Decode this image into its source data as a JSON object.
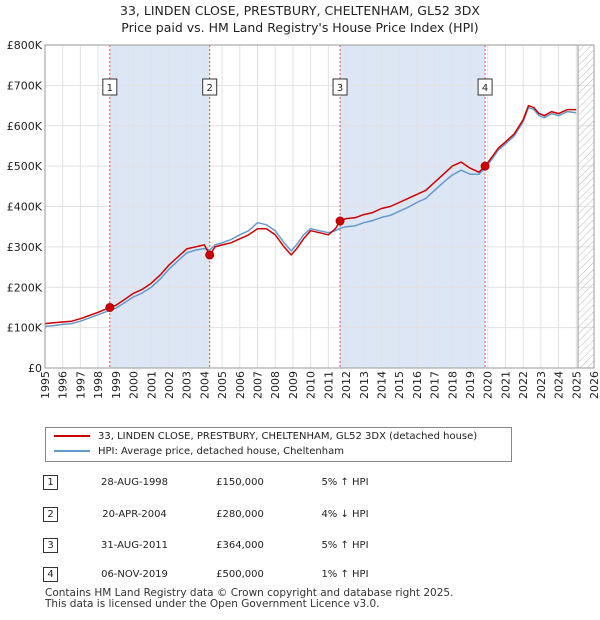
{
  "title_line1": "33, LINDEN CLOSE, PRESTBURY, CHELTENHAM, GL52 3DX",
  "title_line2": "Price paid vs. HM Land Registry's House Price Index (HPI)",
  "colors": {
    "property": "#cc0000",
    "hpi": "#6699cc",
    "sale_band": "#dde6f5",
    "marker_line": "#e05050"
  },
  "legend": {
    "property_label": "33, LINDEN CLOSE, PRESTBURY, CHELTENHAM, GL52 3DX (detached house)",
    "hpi_label": "HPI: Average price, detached house, Cheltenham"
  },
  "sales": [
    {
      "num": "1",
      "date": "28-AUG-1998",
      "price": "£150,000",
      "hpi": "5% ↑ HPI"
    },
    {
      "num": "2",
      "date": "20-APR-2004",
      "price": "£280,000",
      "hpi": "4% ↓ HPI"
    },
    {
      "num": "3",
      "date": "31-AUG-2011",
      "price": "£364,000",
      "hpi": "5% ↑ HPI"
    },
    {
      "num": "4",
      "date": "06-NOV-2019",
      "price": "£500,000",
      "hpi": "1% ↑ HPI"
    }
  ],
  "footer_line1": "Contains HM Land Registry data © Crown copyright and database right 2025.",
  "footer_line2": "This data is licensed under the Open Government Licence v3.0.",
  "chart_data": {
    "type": "line",
    "title": "33, LINDEN CLOSE, PRESTBURY, CHELTENHAM, GL52 3DX — Price paid vs. HM Land Registry's House Price Index (HPI)",
    "xlabel": "",
    "ylabel": "",
    "xlim": [
      1995,
      2026
    ],
    "ylim": [
      0,
      800000
    ],
    "x_ticks": [
      1995,
      1996,
      1997,
      1998,
      1999,
      2000,
      2001,
      2002,
      2003,
      2004,
      2005,
      2006,
      2007,
      2008,
      2009,
      2010,
      2011,
      2012,
      2013,
      2014,
      2015,
      2016,
      2017,
      2018,
      2019,
      2020,
      2021,
      2022,
      2023,
      2024,
      2025,
      2026
    ],
    "y_ticks": [
      {
        "value": 0,
        "label": "£0"
      },
      {
        "value": 100000,
        "label": "£100K"
      },
      {
        "value": 200000,
        "label": "£200K"
      },
      {
        "value": 300000,
        "label": "£300K"
      },
      {
        "value": 400000,
        "label": "£400K"
      },
      {
        "value": 500000,
        "label": "£500K"
      },
      {
        "value": 600000,
        "label": "£600K"
      },
      {
        "value": 700000,
        "label": "£700K"
      },
      {
        "value": 800000,
        "label": "£800K"
      }
    ],
    "grid": true,
    "forecast_start": 2025.1,
    "sale_bands": [
      [
        1998.66,
        2004.3
      ],
      [
        2011.66,
        2019.85
      ]
    ],
    "sale_points": [
      {
        "label": "1",
        "x": 1998.66,
        "y": 150000
      },
      {
        "label": "2",
        "x": 2004.3,
        "y": 280000
      },
      {
        "label": "3",
        "x": 2011.66,
        "y": 364000
      },
      {
        "label": "4",
        "x": 2019.85,
        "y": 500000
      }
    ],
    "series": [
      {
        "name": "33, LINDEN CLOSE, PRESTBURY, CHELTENHAM, GL52 3DX (detached house)",
        "x": [
          1995.0,
          1995.5,
          1996.0,
          1996.5,
          1997.0,
          1997.5,
          1998.0,
          1998.66,
          1999.0,
          1999.5,
          2000.0,
          2000.5,
          2001.0,
          2001.5,
          2002.0,
          2002.5,
          2003.0,
          2003.5,
          2004.0,
          2004.3,
          2004.6,
          2005.0,
          2005.5,
          2006.0,
          2006.5,
          2007.0,
          2007.5,
          2008.0,
          2008.5,
          2008.9,
          2009.2,
          2009.6,
          2010.0,
          2010.5,
          2011.0,
          2011.4,
          2011.66,
          2012.0,
          2012.5,
          2013.0,
          2013.5,
          2014.0,
          2014.5,
          2015.0,
          2015.5,
          2016.0,
          2016.5,
          2017.0,
          2017.5,
          2018.0,
          2018.5,
          2019.0,
          2019.5,
          2019.85,
          2020.2,
          2020.6,
          2021.0,
          2021.5,
          2022.0,
          2022.3,
          2022.6,
          2022.9,
          2023.2,
          2023.6,
          2024.0,
          2024.5,
          2025.0
        ],
        "y": [
          110000,
          112000,
          114000,
          116000,
          122000,
          130000,
          138000,
          150000,
          155000,
          170000,
          185000,
          195000,
          210000,
          230000,
          255000,
          275000,
          295000,
          300000,
          305000,
          280000,
          300000,
          305000,
          310000,
          320000,
          330000,
          345000,
          345000,
          330000,
          300000,
          280000,
          295000,
          320000,
          340000,
          335000,
          330000,
          345000,
          364000,
          370000,
          372000,
          380000,
          385000,
          395000,
          400000,
          410000,
          420000,
          430000,
          440000,
          460000,
          480000,
          500000,
          510000,
          495000,
          485000,
          500000,
          520000,
          545000,
          560000,
          580000,
          615000,
          650000,
          645000,
          630000,
          625000,
          635000,
          630000,
          640000,
          640000
        ]
      },
      {
        "name": "HPI: Average price, detached house, Cheltenham",
        "x": [
          1995.0,
          1995.5,
          1996.0,
          1996.5,
          1997.0,
          1997.5,
          1998.0,
          1998.66,
          1999.0,
          1999.5,
          2000.0,
          2000.5,
          2001.0,
          2001.5,
          2002.0,
          2002.5,
          2003.0,
          2003.5,
          2004.0,
          2004.3,
          2004.6,
          2005.0,
          2005.5,
          2006.0,
          2006.5,
          2007.0,
          2007.5,
          2008.0,
          2008.5,
          2008.9,
          2009.2,
          2009.6,
          2010.0,
          2010.5,
          2011.0,
          2011.4,
          2011.66,
          2012.0,
          2012.5,
          2013.0,
          2013.5,
          2014.0,
          2014.5,
          2015.0,
          2015.5,
          2016.0,
          2016.5,
          2017.0,
          2017.5,
          2018.0,
          2018.5,
          2019.0,
          2019.5,
          2019.85,
          2020.2,
          2020.6,
          2021.0,
          2021.5,
          2022.0,
          2022.3,
          2022.6,
          2022.9,
          2023.2,
          2023.6,
          2024.0,
          2024.5,
          2025.0
        ],
        "y": [
          103000,
          105000,
          108000,
          110000,
          116000,
          124000,
          132000,
          143000,
          148000,
          162000,
          176000,
          186000,
          200000,
          220000,
          245000,
          265000,
          285000,
          292000,
          296000,
          292000,
          305000,
          310000,
          318000,
          330000,
          340000,
          360000,
          355000,
          340000,
          310000,
          290000,
          305000,
          330000,
          345000,
          340000,
          335000,
          340000,
          346000,
          350000,
          352000,
          360000,
          365000,
          373000,
          378000,
          388000,
          398000,
          410000,
          420000,
          440000,
          460000,
          478000,
          490000,
          480000,
          480000,
          495000,
          515000,
          540000,
          555000,
          575000,
          610000,
          645000,
          640000,
          625000,
          620000,
          630000,
          625000,
          635000,
          632000
        ]
      }
    ]
  }
}
